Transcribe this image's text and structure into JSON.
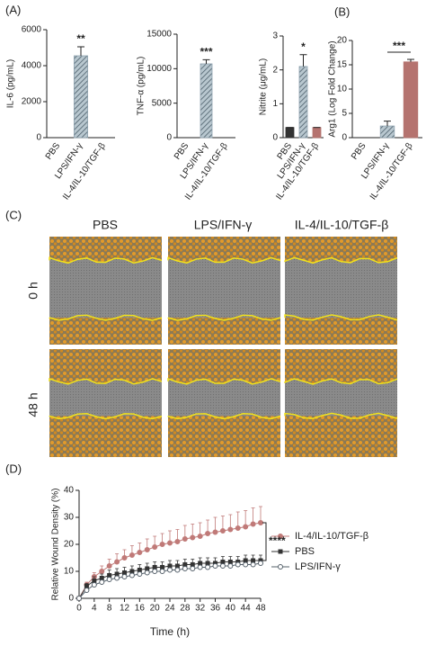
{
  "panel_labels": [
    "(A)",
    "(B)",
    "(C)",
    "(D)"
  ],
  "images": {
    "columns": [
      "PBS",
      "LPS/IFN-γ",
      "IL-4/IL-10/TGF-β"
    ],
    "rows": [
      "0 h",
      "48 h"
    ]
  },
  "chart_data": [
    {
      "type": "bar",
      "ylabel": "IL-6 (pg/mL)",
      "categories": [
        "PBS",
        "LPS/IFN-γ",
        "IL-4/IL-10/TGF-β"
      ],
      "values": [
        0,
        4550,
        0
      ],
      "errors": [
        0,
        500,
        0
      ],
      "colors": [
        "#333333",
        "#8fa3b0",
        "#b5736f"
      ],
      "ylim": [
        0,
        6000
      ],
      "yticks": [
        0,
        2000,
        4000,
        6000
      ],
      "annotation": "**"
    },
    {
      "type": "bar",
      "ylabel": "TNF-α (pg/mL)",
      "categories": [
        "PBS",
        "LPS/IFN-γ",
        "IL-4/IL-10/TGF-β"
      ],
      "values": [
        0,
        10700,
        0
      ],
      "errors": [
        0,
        600,
        0
      ],
      "colors": [
        "#333333",
        "#8fa3b0",
        "#b5736f"
      ],
      "ylim": [
        0,
        15000
      ],
      "yticks": [
        0,
        5000,
        10000,
        15000
      ],
      "annotation": "***"
    },
    {
      "type": "bar",
      "ylabel": "Nitrite (μg/mL)",
      "categories": [
        "PBS",
        "LPS/IFN-γ",
        "IL-4/IL-10/TGF-β"
      ],
      "values": [
        0.3,
        2.1,
        0.3
      ],
      "errors": [
        0,
        0.35,
        0
      ],
      "colors": [
        "#333333",
        "#8fa3b0",
        "#b5736f"
      ],
      "ylim": [
        0,
        3
      ],
      "yticks": [
        0,
        1,
        2,
        3
      ],
      "annotation": "*"
    },
    {
      "type": "bar",
      "ylabel": "Arg1 (Log Fold Change)",
      "categories": [
        "PBS",
        "LPS/IFN-γ",
        "IL-4/IL-10/TGF-β"
      ],
      "values": [
        0,
        2.4,
        15.6
      ],
      "errors": [
        0,
        1.0,
        0.5
      ],
      "colors": [
        "#333333",
        "#8fa3b0",
        "#b5736f"
      ],
      "ylim": [
        0,
        20
      ],
      "yticks": [
        0,
        5,
        10,
        15,
        20
      ],
      "annotation": "***"
    },
    {
      "type": "line",
      "xlabel": "Time (h)",
      "ylabel": "Relative Wound Density (%)",
      "x": [
        0,
        2,
        4,
        6,
        8,
        10,
        12,
        14,
        16,
        18,
        20,
        22,
        24,
        26,
        28,
        30,
        32,
        34,
        36,
        38,
        40,
        42,
        44,
        46,
        48
      ],
      "series": [
        {
          "name": "IL-4/IL-10/TGF-β",
          "color": "#c07a78",
          "marker": "circle",
          "values": [
            0,
            5,
            8,
            10,
            12,
            13.5,
            15,
            16,
            17,
            18,
            19,
            20,
            20.5,
            21,
            22,
            22.5,
            23,
            24,
            24.5,
            25,
            25.5,
            26,
            26.5,
            27.5,
            28
          ],
          "errors": [
            0,
            1,
            1.5,
            2,
            2.5,
            3,
            3,
            3.5,
            3.5,
            4,
            4,
            4,
            4.5,
            4.5,
            5,
            5,
            5,
            5,
            5.5,
            5.5,
            5.5,
            6,
            6,
            6,
            6
          ]
        },
        {
          "name": "PBS",
          "color": "#333333",
          "marker": "square",
          "values": [
            0,
            4.5,
            6.5,
            7.5,
            8.5,
            9,
            9.5,
            10,
            10.5,
            11,
            11.5,
            11.5,
            12,
            12,
            12.5,
            12.5,
            13,
            13,
            13,
            13.5,
            13.5,
            13.5,
            14,
            14,
            14
          ],
          "errors": [
            0,
            1,
            1.5,
            1.5,
            2,
            2,
            2,
            2,
            2,
            2,
            2,
            2,
            2,
            2,
            2,
            2,
            2,
            2,
            2,
            2,
            2,
            2,
            2,
            2,
            2
          ]
        },
        {
          "name": "LPS/IFN-γ",
          "color": "#55606a",
          "marker": "open-circle",
          "values": [
            0,
            3,
            5,
            6,
            7,
            7.5,
            8,
            8.5,
            9,
            9.5,
            10,
            10,
            10.5,
            10.5,
            11,
            11,
            11.5,
            11.5,
            12,
            12,
            12,
            12.5,
            12.5,
            12.5,
            13
          ],
          "errors": [
            0,
            0.5,
            0.5,
            0.5,
            0.5,
            0.5,
            0.5,
            0.5,
            0.5,
            0.5,
            0.5,
            0.5,
            0.5,
            0.5,
            0.5,
            0.5,
            0.5,
            0.5,
            0.5,
            0.5,
            0.5,
            0.5,
            0.5,
            0.5,
            0.5
          ]
        }
      ],
      "xlim": [
        0,
        48
      ],
      "xticks": [
        0,
        4,
        8,
        12,
        16,
        20,
        24,
        28,
        32,
        36,
        40,
        44,
        48
      ],
      "ylim": [
        0,
        40
      ],
      "yticks": [
        0,
        10,
        20,
        30,
        40
      ],
      "annotation": "****",
      "legend": "right"
    }
  ]
}
